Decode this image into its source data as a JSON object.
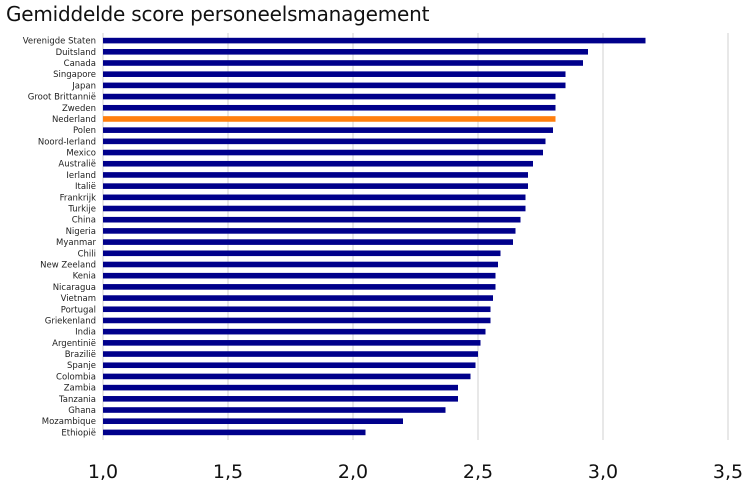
{
  "chart_data": {
    "type": "bar",
    "orientation": "horizontal",
    "title": "Gemiddelde score personeelsmanagement",
    "xlabel": "",
    "ylabel": "",
    "xlim": [
      1.0,
      3.5
    ],
    "x_ticks": [
      1.0,
      1.5,
      2.0,
      2.5,
      3.0,
      3.5
    ],
    "x_tick_labels": [
      "1,0",
      "1,5",
      "2,0",
      "2,5",
      "3,0",
      "3,5"
    ],
    "grid": "vertical",
    "legend": "none",
    "bar_color": "#00008B",
    "highlight_color": "#FF7F0E",
    "highlight_category": "Nederland",
    "categories": [
      "Verenigde Staten",
      "Duitsland",
      "Canada",
      "Singapore",
      "Japan",
      "Groot Brittannië",
      "Zweden",
      "Nederland",
      "Polen",
      "Noord-Ierland",
      "Mexico",
      "Australië",
      "Ierland",
      "Italië",
      "Frankrijk",
      "Turkije",
      "China",
      "Nigeria",
      "Myanmar",
      "Chili",
      "New Zeeland",
      "Kenia",
      "Nicaragua",
      "Vietnam",
      "Portugal",
      "Griekenland",
      "India",
      "Argentinië",
      "Brazilië",
      "Spanje",
      "Colombia",
      "Zambia",
      "Tanzania",
      "Ghana",
      "Mozambique",
      "Ethiopië"
    ],
    "values": [
      3.17,
      2.94,
      2.92,
      2.85,
      2.85,
      2.81,
      2.81,
      2.81,
      2.8,
      2.77,
      2.76,
      2.72,
      2.7,
      2.7,
      2.69,
      2.69,
      2.67,
      2.65,
      2.64,
      2.59,
      2.58,
      2.57,
      2.57,
      2.56,
      2.55,
      2.55,
      2.53,
      2.51,
      2.5,
      2.49,
      2.47,
      2.42,
      2.42,
      2.37,
      2.2,
      2.05
    ]
  }
}
